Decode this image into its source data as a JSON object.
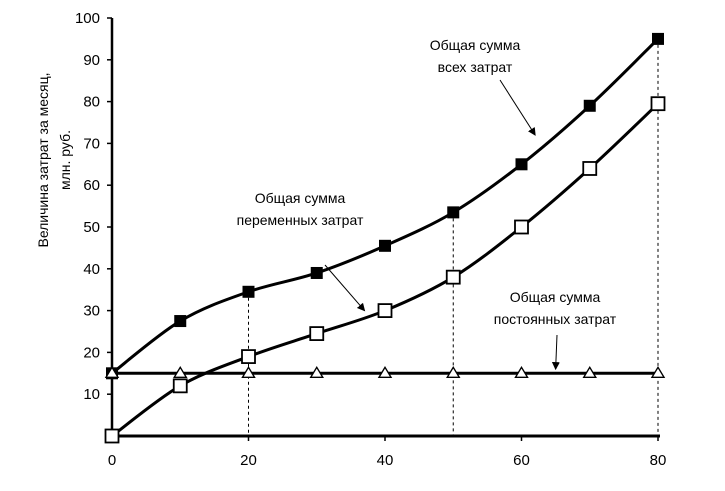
{
  "chart_data": {
    "type": "line",
    "title": "",
    "xlabel": "",
    "ylabel": [
      "Величина затрат за месяц,",
      "млн. руб."
    ],
    "xlim": [
      0,
      80
    ],
    "ylim": [
      0,
      100
    ],
    "x_ticks": [
      "0",
      "20",
      "40",
      "60",
      "80"
    ],
    "y_ticks": [
      "10",
      "20",
      "30",
      "40",
      "50",
      "60",
      "70",
      "80",
      "90",
      "100"
    ],
    "grid": false,
    "series": [
      {
        "name": "Общая сумма всех затрат",
        "marker": "filled-square",
        "x": [
          0,
          10,
          20,
          30,
          40,
          50,
          60,
          70,
          80
        ],
        "y": [
          15,
          27.5,
          34.5,
          39,
          45.5,
          53.5,
          65,
          79,
          95
        ]
      },
      {
        "name": "Общая сумма переменных затрат",
        "marker": "open-square",
        "x": [
          0,
          10,
          20,
          30,
          40,
          50,
          60,
          70,
          80
        ],
        "y": [
          0,
          12,
          19,
          24.5,
          30,
          38,
          50,
          64,
          79.5
        ]
      },
      {
        "name": "Общая сумма постоянных затрат",
        "marker": "open-triangle",
        "x": [
          0,
          10,
          20,
          30,
          40,
          50,
          60,
          70,
          80
        ],
        "y": [
          15,
          15,
          15,
          15,
          15,
          15,
          15,
          15,
          15
        ]
      }
    ],
    "dropline_x": [
      20,
      50,
      80
    ],
    "annotations": [
      {
        "series": 0,
        "lines": [
          "Общая сумма",
          "всех затрат"
        ],
        "arrow_to": [
          62,
          72
        ]
      },
      {
        "series": 1,
        "lines": [
          "Общая сумма",
          "переменных затрат"
        ],
        "arrow_to": [
          37,
          30
        ]
      },
      {
        "series": 2,
        "lines": [
          "Общая сумма",
          "постоянных затрат"
        ],
        "arrow_to": [
          65,
          16
        ]
      }
    ]
  }
}
